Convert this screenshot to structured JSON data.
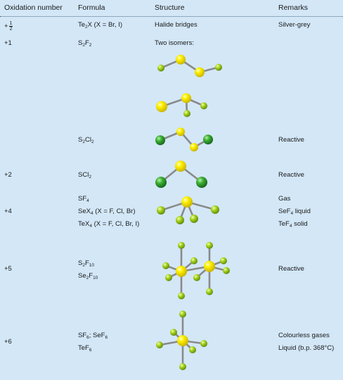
{
  "colors": {
    "background": "#d3e7f7",
    "sulfur": "#f5e600",
    "fluorine": "#a6d21d",
    "chlorine": "#2faa2a",
    "bond": "#8a8a8a"
  },
  "headers": {
    "oxidation": "Oxidation number",
    "formula": "Formula",
    "structure": "Structure",
    "remarks": "Remarks"
  },
  "rows": {
    "r1": {
      "ox_sign": "+",
      "ox_num": "1",
      "ox_den": "2",
      "formula": "Te",
      "formula_sub": "2",
      "formula_rest": "X (X = Br, I)",
      "structure": "Halide bridges",
      "remark": "Silver-grey"
    },
    "r2": {
      "ox": "+1",
      "f1": "S",
      "f1_s1": "2",
      "f1_m": "F",
      "f1_s2": "2",
      "structure": "Two isomers:"
    },
    "r3": {
      "f1": "S",
      "f1_s1": "2",
      "f1_m": "Cl",
      "f1_s2": "2",
      "remark": "Reactive"
    },
    "r4": {
      "ox": "+2",
      "f1": "SCl",
      "f1_s": "2",
      "remark": "Reactive"
    },
    "r5": {
      "ox": "+4",
      "f1": "SF",
      "f1_s": "4",
      "f2": "SeX",
      "f2_s": "4",
      "f2_rest": " (X = F, Cl, Br)",
      "f3": "TeX",
      "f3_s": "4",
      "f3_rest": " (X = F, Cl, Br, I)",
      "rm1": "Gas",
      "rm2": "SeF",
      "rm2_s": "4",
      "rm2_rest": " liquid",
      "rm3": "TeF",
      "rm3_s": "4",
      "rm3_rest": " solid"
    },
    "r6": {
      "ox": "+5",
      "f1": "S",
      "f1_s1": "2",
      "f1_m": "F",
      "f1_s2": "10",
      "f2": "Se",
      "f2_s1": "2",
      "f2_m": "F",
      "f2_s2": "10",
      "remark": "Reactive"
    },
    "r7": {
      "ox": "+6",
      "f1a": "SF",
      "f1a_s": "6",
      "f1b": "; SeF",
      "f1b_s": "6",
      "f2": "TeF",
      "f2_s": "6",
      "rm1": "Colourless gases",
      "rm2": "Liquid (b.p. 368°C)"
    }
  }
}
